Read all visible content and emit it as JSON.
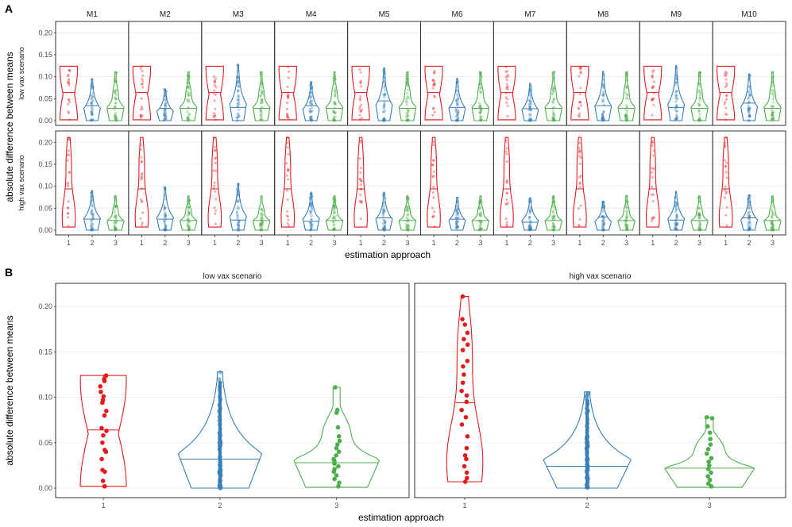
{
  "panel_a": {
    "letter": "A",
    "xlabel": "estimation approach",
    "ylabel": "absolute difference between means"
  },
  "panel_b": {
    "letter": "B",
    "xlabel": "estimation approach",
    "ylabel": "absolute difference between means"
  },
  "colors": {
    "1": "#e41a1c",
    "2": "#377eb8",
    "3": "#4daf4a",
    "grid": "#ebebeb",
    "border": "#333333"
  },
  "chart_data": [
    {
      "type": "violin",
      "panel": "A",
      "facet_cols": [
        "M1",
        "M2",
        "M3",
        "M4",
        "M5",
        "M6",
        "M7",
        "M8",
        "M9",
        "M10"
      ],
      "facet_rows": [
        "low vax scenario",
        "high vax scenario"
      ],
      "categories": [
        "1",
        "2",
        "3"
      ],
      "xlabel": "estimation approach",
      "ylabel": "absolute difference between means",
      "ylim_by_row": [
        [
          0,
          0.215
        ],
        [
          0,
          0.215
        ]
      ],
      "yticks_by_row": [
        [
          "0.00",
          "0.05",
          "0.10",
          "0.15",
          "0.20"
        ],
        [
          "0.00",
          "0.05",
          "0.10",
          "0.15",
          "0.20"
        ]
      ],
      "grid": true,
      "medians": {
        "low vax scenario": {
          "1": [
            0.064,
            0.064,
            0.064,
            0.064,
            0.064,
            0.064,
            0.064,
            0.064,
            0.064,
            0.064
          ],
          "2": [
            0.034,
            0.028,
            0.03,
            0.034,
            0.045,
            0.03,
            0.027,
            0.034,
            0.03,
            0.04
          ],
          "3": [
            0.028,
            0.028,
            0.028,
            0.028,
            0.028,
            0.028,
            0.028,
            0.028,
            0.028,
            0.028
          ]
        },
        "high vax scenario": {
          "1": [
            0.094,
            0.094,
            0.094,
            0.094,
            0.094,
            0.094,
            0.094,
            0.094,
            0.094,
            0.094
          ],
          "2": [
            0.025,
            0.025,
            0.023,
            0.02,
            0.028,
            0.025,
            0.018,
            0.03,
            0.023,
            0.028
          ],
          "3": [
            0.022,
            0.022,
            0.022,
            0.022,
            0.022,
            0.022,
            0.022,
            0.022,
            0.022,
            0.022
          ]
        }
      },
      "max_values": {
        "low vax scenario": {
          "1": [
            0.124,
            0.124,
            0.124,
            0.124,
            0.124,
            0.124,
            0.124,
            0.124,
            0.124,
            0.124
          ],
          "2": [
            0.095,
            0.072,
            0.128,
            0.088,
            0.12,
            0.096,
            0.085,
            0.112,
            0.125,
            0.106
          ],
          "3": [
            0.111,
            0.111,
            0.111,
            0.111,
            0.111,
            0.111,
            0.111,
            0.111,
            0.111,
            0.111
          ]
        },
        "high vax scenario": {
          "1": [
            0.211,
            0.211,
            0.211,
            0.211,
            0.211,
            0.211,
            0.211,
            0.211,
            0.211,
            0.211
          ],
          "2": [
            0.09,
            0.098,
            0.106,
            0.086,
            0.086,
            0.075,
            0.074,
            0.066,
            0.088,
            0.08
          ],
          "3": [
            0.078,
            0.078,
            0.078,
            0.078,
            0.078,
            0.078,
            0.078,
            0.078,
            0.078,
            0.078
          ]
        }
      }
    },
    {
      "type": "violin",
      "panel": "B",
      "facets": [
        "low vax scenario",
        "high vax scenario"
      ],
      "categories": [
        "1",
        "2",
        "3"
      ],
      "xlabel": "estimation approach",
      "ylabel": "absolute difference between means",
      "ylim": [
        0,
        0.215
      ],
      "yticks": [
        "0.00",
        "0.05",
        "0.10",
        "0.15",
        "0.20"
      ],
      "grid": true,
      "series": [
        {
          "facet": "low vax scenario",
          "groups": [
            {
              "category": "1",
              "median": 0.064,
              "min": 0.002,
              "max": 0.124,
              "points": [
                0.124,
                0.123,
                0.12,
                0.118,
                0.112,
                0.106,
                0.101,
                0.097,
                0.094,
                0.085,
                0.08,
                0.066,
                0.063,
                0.058,
                0.05,
                0.042,
                0.04,
                0.032,
                0.02,
                0.018,
                0.008,
                0.002
              ]
            },
            {
              "category": "2",
              "median": 0.032,
              "min": 0.0,
              "max": 0.128
            },
            {
              "category": "3",
              "median": 0.028,
              "min": 0.001,
              "max": 0.111,
              "points": [
                0.111,
                0.086,
                0.083,
                0.067,
                0.057,
                0.052,
                0.048,
                0.044,
                0.04,
                0.036,
                0.032,
                0.03,
                0.027,
                0.024,
                0.021,
                0.018,
                0.014,
                0.01,
                0.006,
                0.002
              ]
            }
          ]
        },
        {
          "facet": "high vax scenario",
          "groups": [
            {
              "category": "1",
              "median": 0.094,
              "min": 0.007,
              "max": 0.211,
              "points": [
                0.211,
                0.186,
                0.18,
                0.171,
                0.164,
                0.158,
                0.152,
                0.14,
                0.134,
                0.125,
                0.116,
                0.107,
                0.102,
                0.095,
                0.086,
                0.078,
                0.07,
                0.057,
                0.044,
                0.036,
                0.032,
                0.024,
                0.017,
                0.011,
                0.007
              ]
            },
            {
              "category": "2",
              "median": 0.024,
              "min": 0.0,
              "max": 0.106
            },
            {
              "category": "3",
              "median": 0.022,
              "min": 0.001,
              "max": 0.078,
              "points": [
                0.078,
                0.077,
                0.068,
                0.061,
                0.054,
                0.048,
                0.043,
                0.038,
                0.033,
                0.029,
                0.025,
                0.021,
                0.017,
                0.013,
                0.009,
                0.005,
                0.002
              ]
            }
          ]
        }
      ]
    }
  ]
}
